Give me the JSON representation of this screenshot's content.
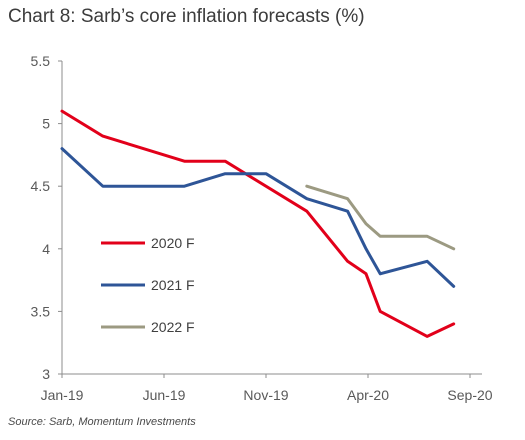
{
  "title": "Chart 8: Sarb’s core inflation forecasts (%)",
  "source": "Source: Sarb, Momentum Investments",
  "chart_data": {
    "type": "line",
    "title": "Chart 8: Sarb’s core inflation forecasts (%)",
    "xlabel": "",
    "ylabel": "",
    "ylim": [
      3,
      5.5
    ],
    "yticks": [
      "3",
      "3.5",
      "4",
      "4.5",
      "5",
      "5.5"
    ],
    "yticks_values": [
      3,
      3.5,
      4,
      4.5,
      5,
      5.5
    ],
    "xticks": [
      "Jan-19",
      "Jun-19",
      "Nov-19",
      "Apr-20",
      "Sep-20"
    ],
    "xticks_months": [
      0,
      5,
      10,
      15,
      20
    ],
    "xlim_months": [
      0,
      20
    ],
    "grid": false,
    "legend_placement": "center-left",
    "series": [
      {
        "name": "2020 F",
        "color": "#e2001a",
        "x_months": [
          0,
          2,
          6,
          8,
          12,
          14,
          14.9,
          15.6,
          17.9,
          19.2
        ],
        "values": [
          5.1,
          4.9,
          4.7,
          4.7,
          4.3,
          3.9,
          3.8,
          3.5,
          3.3,
          3.4
        ]
      },
      {
        "name": "2021 F",
        "color": "#2e5597",
        "x_months": [
          0,
          2,
          6,
          8,
          10,
          12,
          14,
          14.9,
          15.6,
          17.9,
          19.2
        ],
        "values": [
          4.8,
          4.5,
          4.5,
          4.6,
          4.6,
          4.4,
          4.3,
          4.0,
          3.8,
          3.9,
          3.7
        ]
      },
      {
        "name": "2022 F",
        "color": "#9c9a82",
        "x_months": [
          12,
          14,
          14.9,
          15.6,
          17.9,
          19.2
        ],
        "values": [
          4.5,
          4.4,
          4.2,
          4.1,
          4.1,
          4.0
        ]
      }
    ]
  }
}
